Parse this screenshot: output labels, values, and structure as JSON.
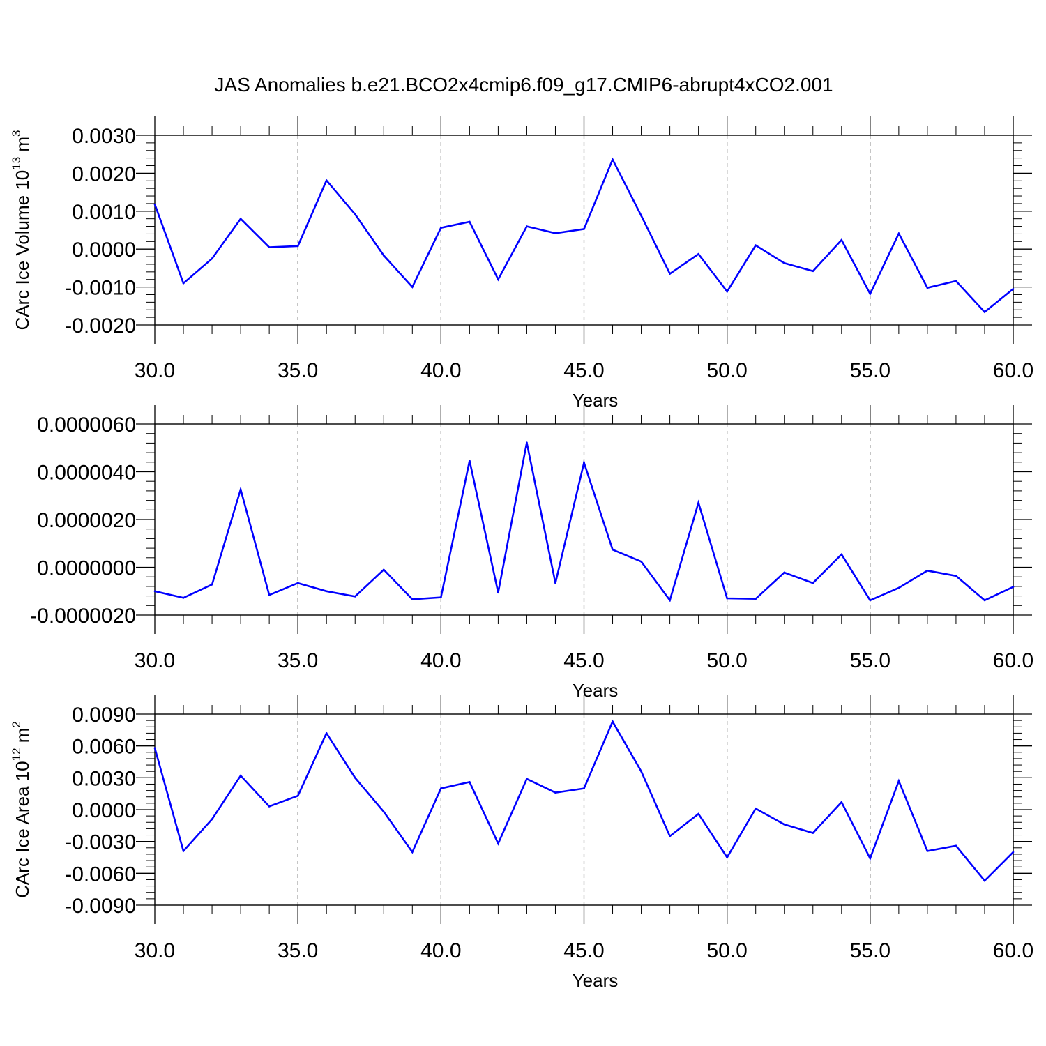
{
  "title": "JAS Anomalies b.e21.BCO2x4cmip6.f09_g17.CMIP6-abrupt4xCO2.001",
  "colors": {
    "line": "#0000ff",
    "axis": "#000000",
    "grid": "#888888"
  },
  "chart_data": [
    {
      "type": "line",
      "xlabel": "Years",
      "ylabel_parts": [
        "CArc Ice Volume 10",
        "13",
        " m",
        "3"
      ],
      "xlim": [
        30,
        60
      ],
      "ylim": [
        -0.002,
        0.003
      ],
      "xticks": [
        30,
        35,
        40,
        45,
        50,
        55,
        60
      ],
      "xtick_labels": [
        "30.0",
        "35.0",
        "40.0",
        "45.0",
        "50.0",
        "55.0",
        "60.0"
      ],
      "yticks": [
        -0.002,
        -0.001,
        0,
        0.001,
        0.002,
        0.003
      ],
      "ytick_labels": [
        "-0.0020",
        "-0.0010",
        "0.0000",
        "0.0010",
        "0.0020",
        "0.0030"
      ],
      "grid": "vertical dashed at major x ticks",
      "x": [
        30,
        31,
        32,
        33,
        34,
        35,
        36,
        37,
        38,
        39,
        40,
        41,
        42,
        43,
        44,
        45,
        46,
        47,
        48,
        49,
        50,
        51,
        52,
        53,
        54,
        55,
        56,
        57,
        58,
        59,
        60
      ],
      "values": [
        0.00118,
        -0.0009,
        -0.00025,
        0.0008,
        5e-05,
        8e-05,
        0.00181,
        0.00092,
        -0.00017,
        -0.001,
        0.00056,
        0.00072,
        -0.0008,
        0.0006,
        0.00042,
        0.00053,
        0.00236,
        0.00088,
        -0.00065,
        -0.00013,
        -0.00112,
        0.0001,
        -0.00037,
        -0.00058,
        0.00024,
        -0.00118,
        0.00041,
        -0.00102,
        -0.00084,
        -0.00166,
        -0.00105
      ]
    },
    {
      "type": "line",
      "xlabel": "Years",
      "ylabel_parts": [],
      "xlim": [
        30,
        60
      ],
      "ylim": [
        -2e-06,
        6e-06
      ],
      "xticks": [
        30,
        35,
        40,
        45,
        50,
        55,
        60
      ],
      "xtick_labels": [
        "30.0",
        "35.0",
        "40.0",
        "45.0",
        "50.0",
        "55.0",
        "60.0"
      ],
      "yticks": [
        -2e-06,
        0,
        2e-06,
        4e-06,
        6e-06
      ],
      "ytick_labels": [
        "-0.0000020",
        "0.0000000",
        "0.0000020",
        "0.0000040",
        "0.0000060"
      ],
      "grid": "vertical dashed at major x ticks",
      "x": [
        30,
        31,
        32,
        33,
        34,
        35,
        36,
        37,
        38,
        39,
        40,
        41,
        42,
        43,
        44,
        45,
        46,
        47,
        48,
        49,
        50,
        51,
        52,
        53,
        54,
        55,
        56,
        57,
        58,
        59,
        60
      ],
      "values": [
        -1e-06,
        -1.28e-06,
        -7.2e-07,
        3.26e-06,
        -1.16e-06,
        -6.6e-07,
        -1e-06,
        -1.22e-06,
        -1e-07,
        -1.34e-06,
        -1.26e-06,
        4.46e-06,
        -1.06e-06,
        5.22e-06,
        -6.6e-07,
        4.38e-06,
        7.4e-07,
        2.4e-07,
        -1.38e-06,
        2.7e-06,
        -1.3e-06,
        -1.32e-06,
        -2.2e-07,
        -6.6e-07,
        5.4e-07,
        -1.38e-06,
        -8.6e-07,
        -1.4e-07,
        -3.6e-07,
        -1.38e-06,
        -8.2e-07
      ]
    },
    {
      "type": "line",
      "xlabel": "Years",
      "ylabel_parts": [
        "CArc Ice Area 10",
        "12",
        " m",
        "2"
      ],
      "xlim": [
        30,
        60
      ],
      "ylim": [
        -0.009,
        0.009
      ],
      "xticks": [
        30,
        35,
        40,
        45,
        50,
        55,
        60
      ],
      "xtick_labels": [
        "30.0",
        "35.0",
        "40.0",
        "45.0",
        "50.0",
        "55.0",
        "60.0"
      ],
      "yticks": [
        -0.009,
        -0.006,
        -0.003,
        0,
        0.003,
        0.006,
        0.009
      ],
      "ytick_labels": [
        "-0.0090",
        "-0.0060",
        "-0.0030",
        "0.0000",
        "0.0030",
        "0.0060",
        "0.0090"
      ],
      "grid": "vertical dashed at major x ticks",
      "x": [
        30,
        31,
        32,
        33,
        34,
        35,
        36,
        37,
        38,
        39,
        40,
        41,
        42,
        43,
        44,
        45,
        46,
        47,
        48,
        49,
        50,
        51,
        52,
        53,
        54,
        55,
        56,
        57,
        58,
        59,
        60
      ],
      "values": [
        0.0058,
        -0.0039,
        -0.0009,
        0.0032,
        0.0003,
        0.0013,
        0.0072,
        0.003,
        -0.0002,
        -0.004,
        0.002,
        0.0026,
        -0.0032,
        0.0029,
        0.0016,
        0.002,
        0.0083,
        0.0036,
        -0.0025,
        -0.0004,
        -0.0045,
        0.0001,
        -0.0014,
        -0.0022,
        0.0007,
        -0.0046,
        0.0027,
        -0.0039,
        -0.0034,
        -0.0067,
        -0.004
      ]
    }
  ]
}
